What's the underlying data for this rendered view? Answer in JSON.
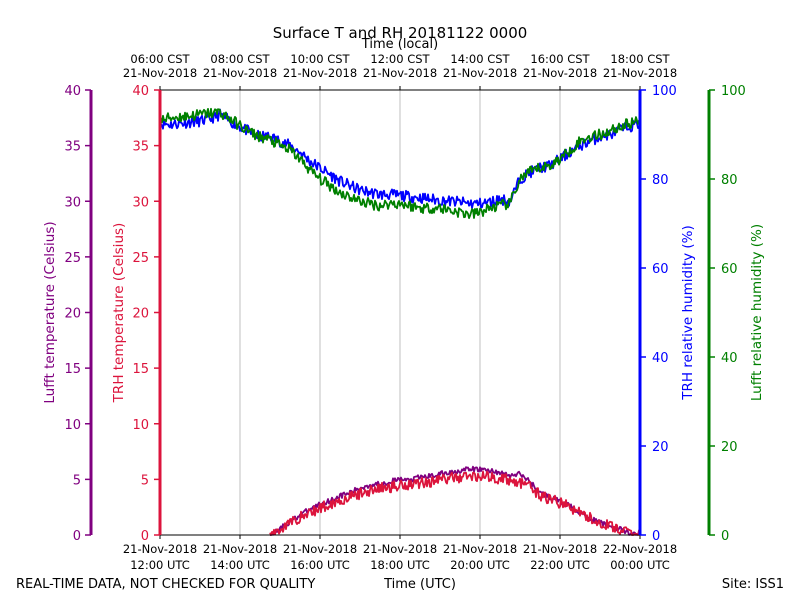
{
  "chart_data": {
    "type": "line",
    "title": "Surface T and RH 20181122 0000",
    "top_axis_label": "Time (local)",
    "bottom_axis_label": "Time (UTC)",
    "footer_left": "REAL-TIME DATA, NOT CHECKED FOR QUALITY",
    "footer_right": "Site: ISS1",
    "x_unit": "hours since 21-Nov-2018 12:00 UTC",
    "xlim": [
      0,
      12
    ],
    "grid_x": true,
    "bottom_ticks": [
      {
        "x": 0,
        "line1": "21-Nov-2018",
        "line2": "12:00 UTC"
      },
      {
        "x": 2,
        "line1": "21-Nov-2018",
        "line2": "14:00 UTC"
      },
      {
        "x": 4,
        "line1": "21-Nov-2018",
        "line2": "16:00 UTC"
      },
      {
        "x": 6,
        "line1": "21-Nov-2018",
        "line2": "18:00 UTC"
      },
      {
        "x": 8,
        "line1": "21-Nov-2018",
        "line2": "20:00 UTC"
      },
      {
        "x": 10,
        "line1": "21-Nov-2018",
        "line2": "22:00 UTC"
      },
      {
        "x": 12,
        "line1": "22-Nov-2018",
        "line2": "00:00 UTC"
      }
    ],
    "top_ticks": [
      {
        "x": 0,
        "line1": "06:00 CST",
        "line2": "21-Nov-2018"
      },
      {
        "x": 2,
        "line1": "08:00 CST",
        "line2": "21-Nov-2018"
      },
      {
        "x": 4,
        "line1": "10:00 CST",
        "line2": "21-Nov-2018"
      },
      {
        "x": 6,
        "line1": "12:00 CST",
        "line2": "21-Nov-2018"
      },
      {
        "x": 8,
        "line1": "14:00 CST",
        "line2": "21-Nov-2018"
      },
      {
        "x": 10,
        "line1": "16:00 CST",
        "line2": "21-Nov-2018"
      },
      {
        "x": 12,
        "line1": "18:00 CST",
        "line2": "21-Nov-2018"
      }
    ],
    "axes": {
      "lufft_temp": {
        "label": "Lufft temperature (Celsius)",
        "color": "#800080",
        "ylim": [
          0,
          40
        ],
        "ticks": [
          "0",
          "5",
          "10",
          "15",
          "20",
          "25",
          "30",
          "35",
          "40"
        ]
      },
      "trh_temp": {
        "label": "TRH temperature (Celsius)",
        "color": "#dc143c",
        "ylim": [
          0,
          40
        ],
        "ticks": [
          "0",
          "5",
          "10",
          "15",
          "20",
          "25",
          "30",
          "35",
          "40"
        ]
      },
      "trh_rh": {
        "label": "TRH relative humidity (%)",
        "color": "#0000ff",
        "ylim": [
          0,
          100
        ],
        "ticks": [
          "0",
          "20",
          "40",
          "60",
          "80",
          "100"
        ]
      },
      "lufft_rh": {
        "label": "Lufft relative humidity (%)",
        "color": "#008000",
        "ylim": [
          0,
          100
        ],
        "ticks": [
          "0",
          "20",
          "40",
          "60",
          "80",
          "100"
        ]
      }
    },
    "series": [
      {
        "name": "TRH relative humidity",
        "axis": "trh_rh",
        "color": "#0000ff",
        "x": [
          0,
          0.25,
          0.5,
          0.75,
          1.0,
          1.25,
          1.5,
          1.75,
          2.0,
          2.25,
          2.5,
          2.75,
          3.0,
          3.25,
          3.5,
          3.75,
          4.0,
          4.25,
          4.5,
          4.75,
          5.0,
          5.25,
          5.5,
          5.75,
          6.0,
          6.25,
          6.5,
          6.75,
          7.0,
          7.25,
          7.5,
          7.75,
          8.0,
          8.25,
          8.5,
          8.75,
          9.0,
          9.25,
          9.5,
          9.75,
          10.0,
          10.25,
          10.5,
          10.75,
          11.0,
          11.25,
          11.5,
          11.75,
          12.0
        ],
        "y": [
          92.5,
          92.3,
          92.5,
          92.8,
          93.0,
          93.5,
          94.5,
          93.0,
          91.8,
          90.5,
          89.5,
          89.5,
          88.5,
          87.5,
          86.0,
          84.0,
          82.5,
          81.0,
          79.5,
          78.5,
          77.5,
          77.0,
          76.5,
          76.5,
          76.3,
          76.0,
          75.8,
          75.5,
          75.2,
          75.0,
          74.8,
          74.5,
          74.5,
          74.8,
          75.5,
          75.0,
          80.0,
          81.5,
          82.5,
          83.0,
          84.5,
          86.0,
          87.5,
          88.5,
          89.5,
          90.0,
          91.0,
          91.8,
          92.5
        ]
      },
      {
        "name": "Lufft relative humidity",
        "axis": "lufft_rh",
        "color": "#008000",
        "x": [
          0,
          0.25,
          0.5,
          0.75,
          1.0,
          1.25,
          1.5,
          1.75,
          2.0,
          2.25,
          2.5,
          2.75,
          3.0,
          3.25,
          3.5,
          3.75,
          4.0,
          4.25,
          4.5,
          4.75,
          5.0,
          5.25,
          5.5,
          5.75,
          6.0,
          6.25,
          6.5,
          6.75,
          7.0,
          7.25,
          7.5,
          7.75,
          8.0,
          8.25,
          8.5,
          8.75,
          9.0,
          9.25,
          9.5,
          9.75,
          10.0,
          10.25,
          10.5,
          10.75,
          11.0,
          11.25,
          11.5,
          11.75,
          12.0
        ],
        "y": [
          93.0,
          93.8,
          94.0,
          94.2,
          94.5,
          94.8,
          95.0,
          93.5,
          92.0,
          90.5,
          89.5,
          88.8,
          87.5,
          86.5,
          84.5,
          82.0,
          80.0,
          78.5,
          77.0,
          76.0,
          75.0,
          74.5,
          74.0,
          74.5,
          74.5,
          74.0,
          73.5,
          73.5,
          73.5,
          73.0,
          72.5,
          72.0,
          72.5,
          73.5,
          74.0,
          74.5,
          80.0,
          81.5,
          82.5,
          83.0,
          84.5,
          86.5,
          88.5,
          89.5,
          90.0,
          90.8,
          91.8,
          92.5,
          93.2
        ]
      },
      {
        "name": "Lufft temperature",
        "axis": "lufft_temp",
        "color": "#800080",
        "x": [
          2.75,
          3.0,
          3.25,
          3.5,
          3.75,
          4.0,
          4.25,
          4.5,
          4.75,
          5.0,
          5.25,
          5.5,
          5.75,
          6.0,
          6.25,
          6.5,
          6.75,
          7.0,
          7.25,
          7.5,
          7.75,
          8.0,
          8.25,
          8.5,
          8.75,
          9.0,
          9.25,
          9.5,
          9.75,
          10.0,
          10.25,
          10.5,
          10.75,
          11.0,
          11.25,
          11.5,
          11.75,
          12.0
        ],
        "y": [
          0.0,
          0.6,
          1.2,
          1.8,
          2.3,
          2.8,
          3.1,
          3.5,
          3.8,
          4.2,
          4.5,
          4.6,
          4.8,
          5.0,
          4.9,
          5.2,
          5.3,
          5.5,
          5.6,
          5.8,
          5.9,
          5.9,
          5.8,
          5.6,
          5.3,
          5.5,
          4.8,
          3.8,
          3.4,
          3.0,
          2.6,
          2.0,
          1.5,
          1.1,
          0.8,
          0.5,
          0.1,
          0.0
        ]
      },
      {
        "name": "TRH temperature",
        "axis": "trh_temp",
        "color": "#dc143c",
        "x": [
          2.75,
          3.0,
          3.25,
          3.5,
          3.75,
          4.0,
          4.25,
          4.5,
          4.75,
          5.0,
          5.25,
          5.5,
          5.75,
          6.0,
          6.25,
          6.5,
          6.75,
          7.0,
          7.25,
          7.5,
          7.75,
          8.0,
          8.25,
          8.5,
          8.75,
          9.0,
          9.25,
          9.5,
          9.75,
          10.0,
          10.25,
          10.5,
          10.75,
          11.0,
          11.25,
          11.5,
          11.75,
          12.0
        ],
        "y": [
          0.0,
          0.5,
          1.1,
          1.6,
          2.0,
          2.4,
          2.8,
          3.1,
          3.4,
          3.7,
          4.0,
          4.2,
          4.3,
          4.5,
          4.6,
          4.7,
          4.8,
          5.0,
          5.1,
          5.2,
          5.3,
          5.3,
          5.2,
          5.1,
          4.9,
          4.7,
          4.3,
          3.6,
          3.2,
          2.9,
          2.5,
          2.0,
          1.5,
          1.1,
          0.8,
          0.5,
          0.1,
          0.0
        ]
      }
    ]
  }
}
